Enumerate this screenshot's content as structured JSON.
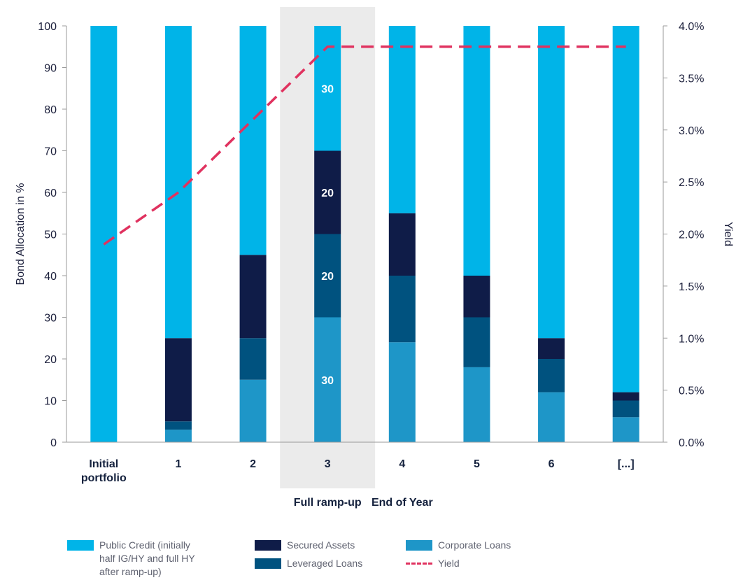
{
  "chart_data": {
    "type": "bar",
    "stacked": true,
    "categories": [
      "Initial\nportfolio",
      "1",
      "2",
      "3",
      "4",
      "5",
      "6",
      "[...]"
    ],
    "group_labels": [
      {
        "category_index": 3,
        "text": "Full ramp-up"
      },
      {
        "category_index": 4,
        "text": "End of Year"
      }
    ],
    "highlight_category": 3,
    "series": [
      {
        "name": "Corporate Loans",
        "color": "#1e96c8",
        "values": [
          0,
          3,
          15,
          30,
          24,
          18,
          12,
          6
        ]
      },
      {
        "name": "Leveraged Loans",
        "color": "#00527f",
        "values": [
          0,
          2,
          10,
          20,
          16,
          12,
          8,
          4
        ]
      },
      {
        "name": "Secured Assets",
        "color": "#0f1c48",
        "values": [
          0,
          20,
          20,
          20,
          15,
          10,
          5,
          2
        ]
      },
      {
        "name": "Public Credit (initially half IG/HY and full HY after ramp-up)",
        "color": "#00b4e8",
        "values": [
          100,
          75,
          55,
          30,
          45,
          60,
          75,
          88
        ]
      }
    ],
    "data_labels": [
      {
        "category_index": 3,
        "series_index": 0,
        "text": "30"
      },
      {
        "category_index": 3,
        "series_index": 1,
        "text": "20"
      },
      {
        "category_index": 3,
        "series_index": 2,
        "text": "20"
      },
      {
        "category_index": 3,
        "series_index": 3,
        "text": "30"
      }
    ],
    "line_series": {
      "name": "Yield",
      "color": "#e0325f",
      "values": [
        0.019,
        0.024,
        0.031,
        0.038,
        0.038,
        0.038,
        0.038,
        0.038
      ]
    },
    "ylabel": "Bond Allocation in %",
    "ylim": [
      0,
      100
    ],
    "yticks": [
      "0",
      "10",
      "20",
      "30",
      "40",
      "50",
      "60",
      "70",
      "80",
      "90",
      "100"
    ],
    "y2label": "Yield",
    "y2lim": [
      0,
      0.04
    ],
    "y2ticks": [
      "0.0%",
      "0.5%",
      "1.0%",
      "1.5%",
      "2.0%",
      "2.5%",
      "3.0%",
      "3.5%",
      "4.0%"
    ],
    "grid": false,
    "legend_position": "bottom"
  },
  "legend": {
    "public_credit": "Public Credit (initially\nhalf IG/HY and full HY\nafter ramp-up)",
    "secured_assets": "Secured Assets",
    "leveraged_loans": "Leveraged Loans",
    "corporate_loans": "Corporate Loans",
    "yield": "Yield"
  }
}
